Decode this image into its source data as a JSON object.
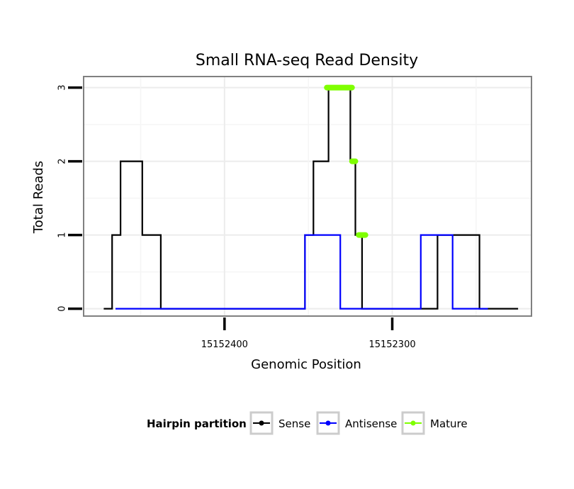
{
  "chart_data": {
    "type": "line",
    "title": "Small RNA-seq Read Density",
    "xlabel": "Genomic Position",
    "ylabel": "Total Reads",
    "x_reversed": true,
    "xlim": [
      15152484,
      15152217
    ],
    "ylim": [
      -0.1,
      3.15
    ],
    "x_ticks": [
      15152400,
      15152300
    ],
    "x_tick_labels": [
      "15152400",
      "15152300"
    ],
    "y_ticks": [
      0,
      1,
      2,
      3
    ],
    "y_tick_labels": [
      "0",
      "1",
      "2",
      "3"
    ],
    "grid": true,
    "series": [
      {
        "name": "Sense",
        "color": "#000000",
        "points": [
          [
            15152472,
            0
          ],
          [
            15152467,
            0
          ],
          [
            15152467,
            1
          ],
          [
            15152462,
            1
          ],
          [
            15152462,
            2
          ],
          [
            15152449,
            2
          ],
          [
            15152449,
            1
          ],
          [
            15152438,
            1
          ],
          [
            15152438,
            0
          ],
          [
            15152352,
            0
          ],
          [
            15152352,
            1
          ],
          [
            15152347,
            1
          ],
          [
            15152347,
            2
          ],
          [
            15152338,
            2
          ],
          [
            15152338,
            3
          ],
          [
            15152325,
            3
          ],
          [
            15152325,
            2
          ],
          [
            15152322,
            2
          ],
          [
            15152322,
            1
          ],
          [
            15152318,
            1
          ],
          [
            15152318,
            0
          ],
          [
            15152273,
            0
          ],
          [
            15152273,
            1
          ],
          [
            15152248,
            1
          ],
          [
            15152248,
            0
          ],
          [
            15152225,
            0
          ]
        ]
      },
      {
        "name": "Antisense",
        "color": "#0000ff",
        "points": [
          [
            15152465,
            0
          ],
          [
            15152352,
            0
          ],
          [
            15152352,
            1
          ],
          [
            15152331,
            1
          ],
          [
            15152331,
            0
          ],
          [
            15152283,
            0
          ],
          [
            15152283,
            1
          ],
          [
            15152264,
            1
          ],
          [
            15152264,
            0
          ],
          [
            15152243,
            0
          ]
        ]
      },
      {
        "name": "Mature",
        "color": "#7fff00",
        "segments": [
          [
            [
              15152339,
              3
            ],
            [
              15152324,
              3
            ]
          ],
          [
            [
              15152324,
              2
            ],
            [
              15152322,
              2
            ]
          ],
          [
            [
              15152320,
              1
            ],
            [
              15152316,
              1
            ]
          ]
        ]
      }
    ],
    "legend": {
      "title": "Hairpin partition",
      "position": "bottom",
      "entries": [
        {
          "label": "Sense",
          "color": "#000000"
        },
        {
          "label": "Antisense",
          "color": "#0000ff"
        },
        {
          "label": "Mature",
          "color": "#7fff00"
        }
      ]
    }
  }
}
